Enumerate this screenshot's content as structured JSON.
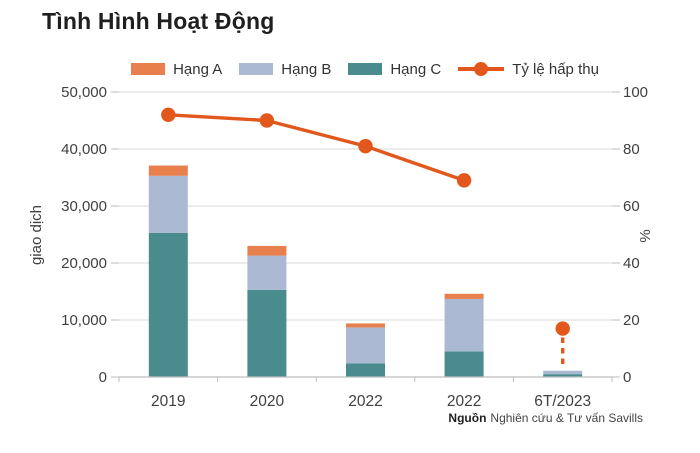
{
  "page": {
    "title": "Tình Hình Hoạt Động"
  },
  "chart_data": {
    "type": "bar",
    "subtype": "stacked-bars-with-line",
    "title": "Tình Hình Hoạt Động",
    "categories": [
      "2019",
      "2020",
      "2022",
      "2022",
      "6T/2023"
    ],
    "series": [
      {
        "name": "Hạng A",
        "color": "#E8804E",
        "values": [
          1800,
          1700,
          700,
          900,
          0
        ]
      },
      {
        "name": "Hạng B",
        "color": "#ABBAD2",
        "values": [
          10000,
          6000,
          6300,
          9200,
          600
        ]
      },
      {
        "name": "Hạng C",
        "color": "#4A8C8E",
        "values": [
          25300,
          15300,
          2400,
          4500,
          500
        ]
      }
    ],
    "stack_order_bottom_to_top": [
      "Hạng C",
      "Hạng B",
      "Hạng A"
    ],
    "line_series": {
      "name": "Tỷ lệ hấp thụ",
      "color": "#E2571C",
      "axis": "right",
      "values": [
        92,
        90,
        81,
        69,
        17
      ],
      "solid_segment_last_index": 3,
      "isolated_last_point_with_dashed_drop": true
    },
    "ylabel": "giao dịch",
    "ylabel_right": "%",
    "ylim": [
      0,
      50000
    ],
    "ylim_right": [
      0,
      100
    ],
    "yticks": [
      0,
      10000,
      20000,
      30000,
      40000,
      50000
    ],
    "ytick_labels": [
      "0",
      "10,000",
      "20,000",
      "30,000",
      "40,000",
      "50,000"
    ],
    "yticks_right": [
      0,
      20,
      40,
      60,
      80,
      100
    ],
    "ytick_labels_right": [
      "0",
      "20",
      "40",
      "60",
      "80",
      "100"
    ],
    "grid": true,
    "legend_position": "top",
    "colors": {
      "gridline": "#D8D8D8",
      "axis_line": "#BDBDBD",
      "tick_text": "#404040",
      "title_text": "#1F1F1F"
    },
    "source": {
      "label": "Nguồn",
      "text": "Nghiên cứu & Tư vấn Savills"
    }
  }
}
